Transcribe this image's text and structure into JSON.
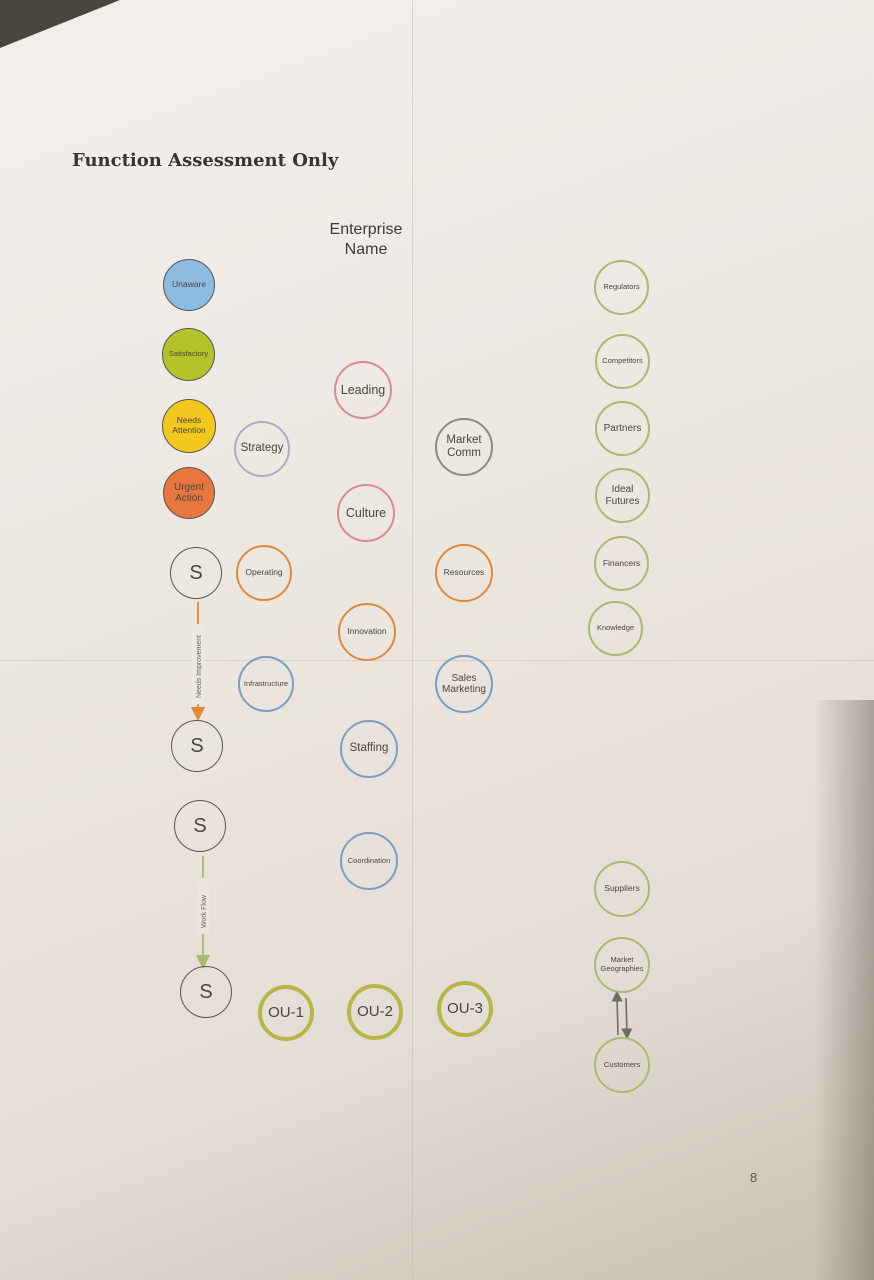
{
  "title": "Function Assessment Only",
  "enterprise_lines": [
    "Enterprise",
    "Name"
  ],
  "legend": {
    "unaware": [
      "Unaware"
    ],
    "satisfactory": [
      "Satisfactory"
    ],
    "needs_attention": [
      "Needs",
      "Attention"
    ],
    "urgent_action": [
      "Urgent",
      "Action"
    ],
    "colors": {
      "unaware": "#8ebbe0",
      "satisfactory": "#b6c22a",
      "needs_attention": "#f2c81c",
      "urgent_action": "#e8773f"
    }
  },
  "s_label": "S",
  "arrows": {
    "needs_improvement": "Needs Improvement",
    "work_flow": "Work Flow",
    "needs_improvement_color": "#e0893d",
    "work_flow_color": "#a9bb6f"
  },
  "center_nodes": {
    "leading": [
      "Leading"
    ],
    "culture": [
      "Culture"
    ],
    "innovation": [
      "Innovation"
    ],
    "staffing": [
      "Staffing"
    ],
    "coordination": [
      "Coordination"
    ]
  },
  "left_nodes": {
    "strategy": [
      "Strategy"
    ],
    "operating": [
      "Operating"
    ],
    "infrastructure": [
      "Infrastructure"
    ]
  },
  "mid_right_nodes": {
    "market_comm": [
      "Market",
      "Comm"
    ],
    "resources": [
      "Resources"
    ],
    "sales_marketing": [
      "Sales",
      "Marketing"
    ]
  },
  "external_nodes": {
    "regulators": [
      "Regulators"
    ],
    "competitors": [
      "Competitors"
    ],
    "partners": [
      "Partners"
    ],
    "ideal_futures": [
      "Ideal",
      "Futures"
    ],
    "financers": [
      "Financers"
    ],
    "knowledge": [
      "Knowledge"
    ],
    "suppliers": [
      "Suppliers"
    ],
    "market_geographies": [
      "Market",
      "Geographies"
    ],
    "customers": [
      "Customers"
    ]
  },
  "ou_nodes": [
    "OU-1",
    "OU-2",
    "OU-3"
  ],
  "page_number": "8"
}
